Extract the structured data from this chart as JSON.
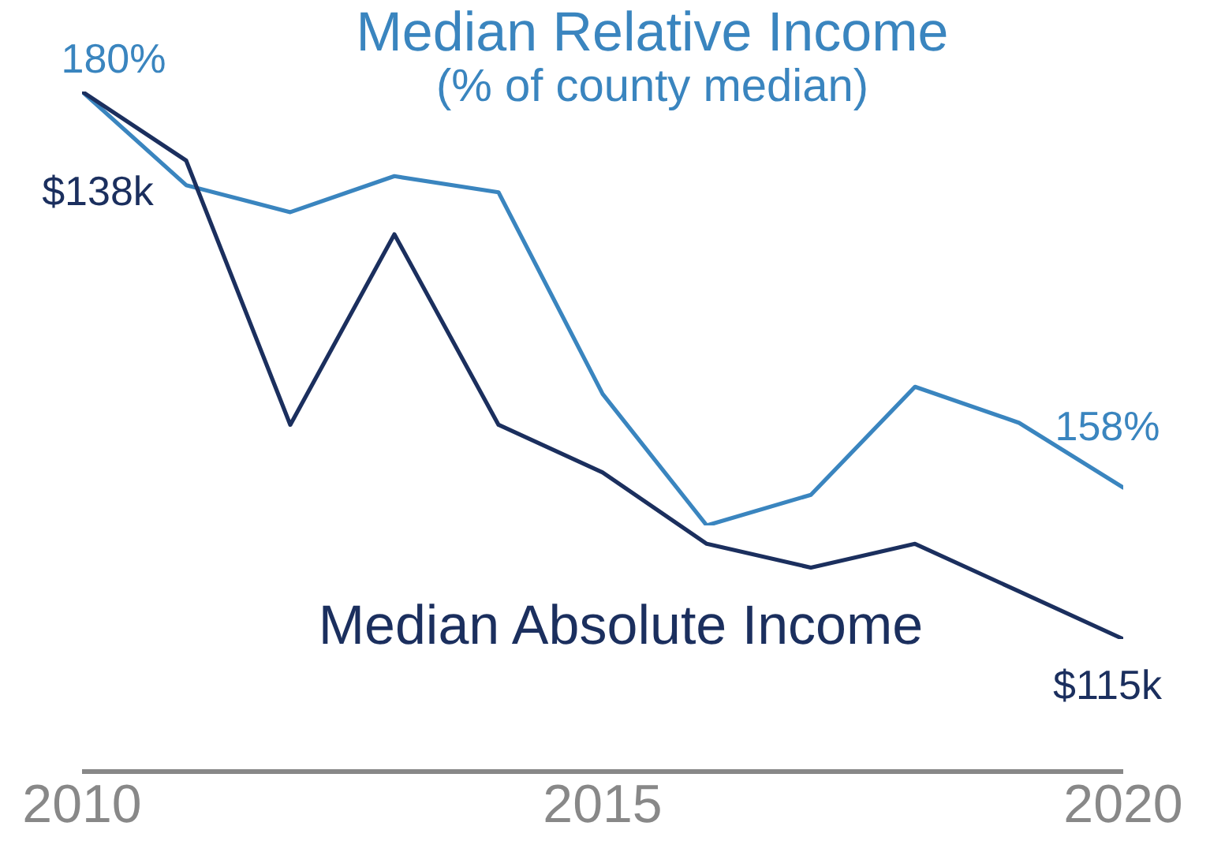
{
  "chart_data": {
    "type": "line",
    "x": [
      2010,
      2011,
      2012,
      2013,
      2014,
      2015,
      2016,
      2017,
      2018,
      2019,
      2020
    ],
    "xlim": [
      2010,
      2020
    ],
    "xticks": [
      2010,
      2015,
      2020
    ],
    "tick_labels": "x",
    "grid": false,
    "legend": false,
    "marker": "none",
    "line_style": "solid",
    "annotations": [
      "(% of county median)"
    ],
    "series": [
      {
        "name": "Median Relative Income",
        "color": "#3a85bf",
        "values": [
          180,
          174.8,
          173.3,
          175.3,
          174.4,
          163.2,
          155.9,
          157.6,
          163.6,
          161.6,
          158
        ],
        "value_labels": [
          "180%",
          null,
          null,
          null,
          null,
          null,
          null,
          null,
          null,
          null,
          "158%"
        ]
      },
      {
        "name": "Median Absolute Income",
        "color": "#1b2f5e",
        "axis": "y2",
        "values": [
          138,
          135.1,
          124,
          132,
          124,
          122,
          119,
          118,
          119,
          117,
          115
        ],
        "value_labels": [
          "$138k",
          null,
          null,
          null,
          null,
          null,
          null,
          null,
          null,
          null,
          "$115k"
        ]
      }
    ]
  }
}
